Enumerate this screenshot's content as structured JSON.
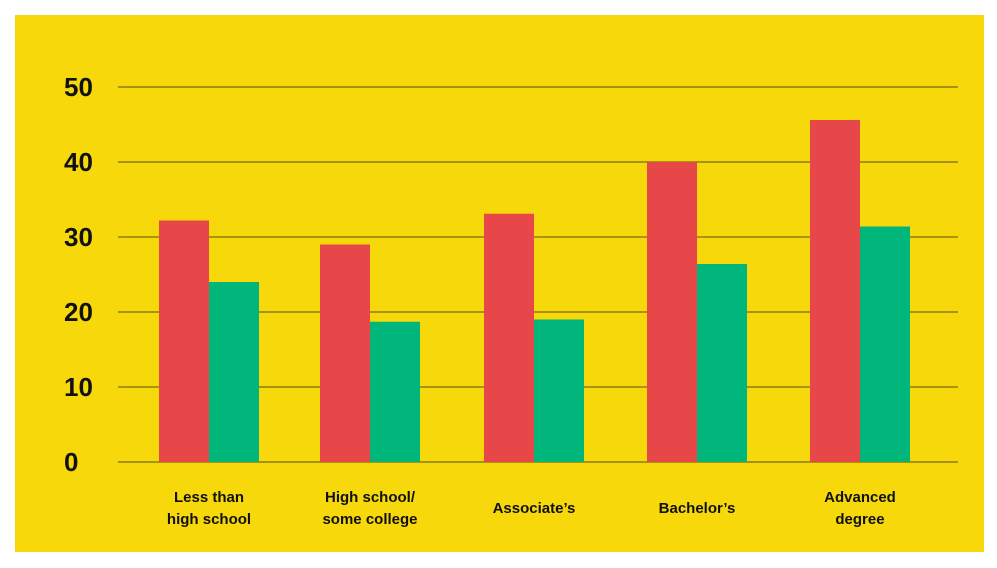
{
  "chart_data": {
    "type": "bar",
    "title": "",
    "xlabel": "",
    "ylabel": "",
    "ylim": [
      0,
      50
    ],
    "yticks": [
      0,
      10,
      20,
      30,
      40,
      50
    ],
    "ytick_labels": [
      "0",
      "10",
      "20",
      "30",
      "40",
      "50"
    ],
    "grid": true,
    "legend": "none",
    "categories": [
      [
        "Less than",
        "high school"
      ],
      [
        "High school/",
        "some college"
      ],
      [
        "Associate’s"
      ],
      [
        "Bachelor’s"
      ],
      [
        "Advanced",
        "degree"
      ]
    ],
    "series": [
      {
        "color": "#e8474a",
        "values": [
          32.2,
          29.0,
          33.1,
          40.0,
          45.6
        ]
      },
      {
        "color": "#00b67a",
        "values": [
          24.0,
          18.7,
          19.0,
          26.4,
          31.4
        ]
      }
    ]
  },
  "colors": {
    "background": "#f7d80a",
    "grid": "#5a4e14",
    "text": "#111111"
  }
}
